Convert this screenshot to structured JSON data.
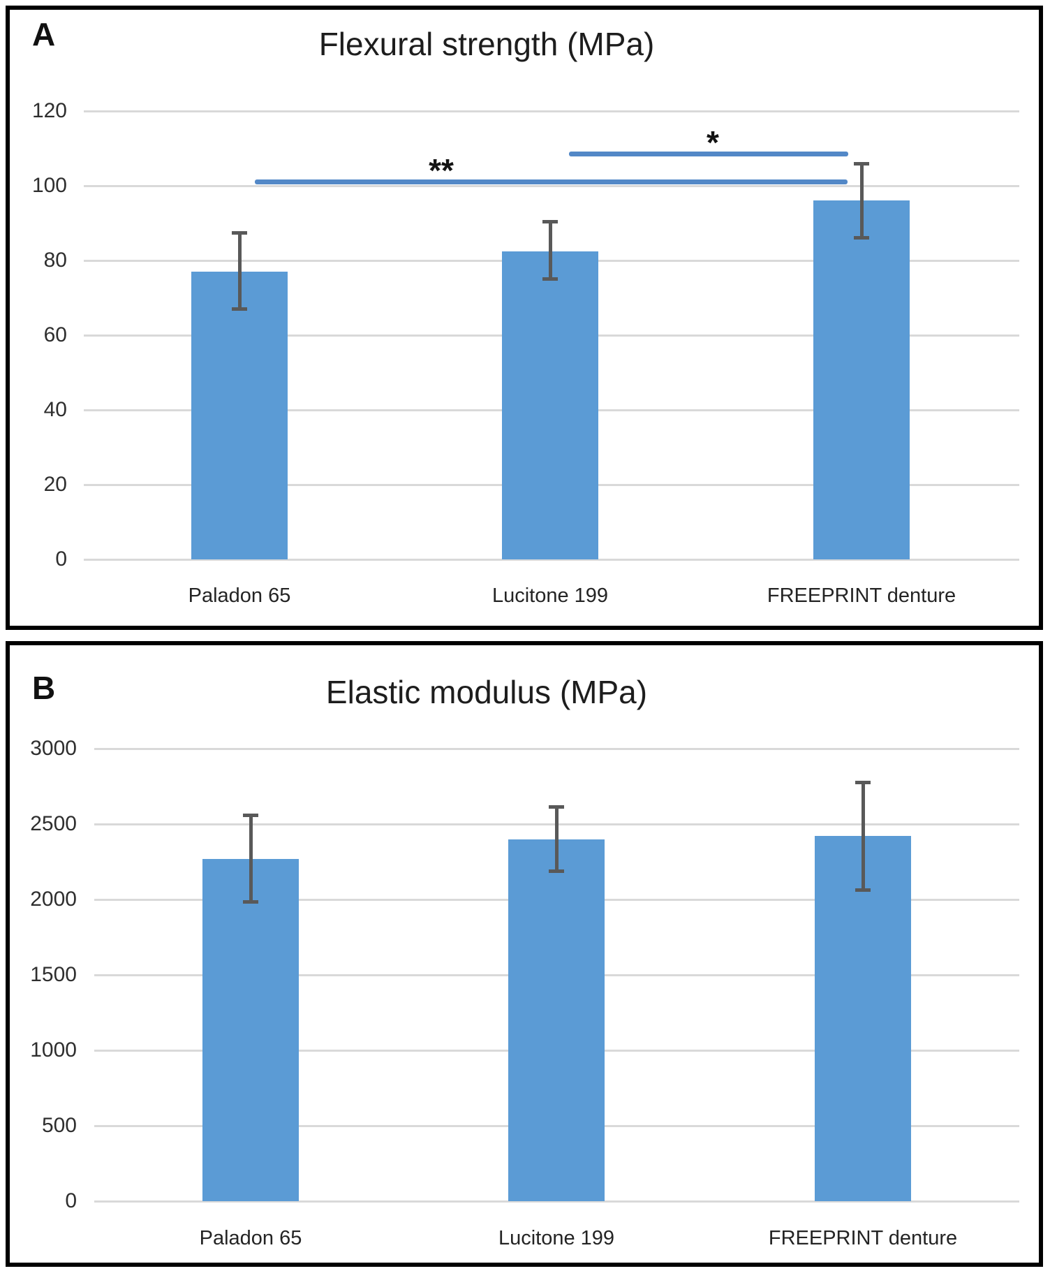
{
  "figure_caption_letters": [
    "A",
    "B"
  ],
  "colors": {
    "bar": "#5b9bd5",
    "significance_line": "#5388c7",
    "error_bar": "#595959",
    "gridline": "#d9d9d9",
    "panel_border": "#000000"
  },
  "chart_data": [
    {
      "panel_letter": "A",
      "type": "bar",
      "title": "Flexural strength (MPa)",
      "categories": [
        "Paladon 65",
        "Lucitone 199",
        "FREEPRINT denture"
      ],
      "values": [
        77,
        82.5,
        96
      ],
      "errors_up": [
        10.5,
        8,
        10
      ],
      "errors_down": [
        10,
        7.5,
        10
      ],
      "ylim": [
        0,
        120
      ],
      "yticks": [
        0,
        20,
        40,
        60,
        80,
        100,
        120
      ],
      "grid": true,
      "legend": "none",
      "bar_color": "#5b9bd5",
      "error_color": "#595959",
      "annotations": [
        {
          "label": "**",
          "from": "Paladon 65",
          "to": "FREEPRINT denture",
          "y_value": 101,
          "line_color": "#5388c7"
        },
        {
          "label": "*",
          "from": "Lucitone 199",
          "to": "FREEPRINT denture",
          "y_value": 108.5,
          "line_color": "#5388c7"
        }
      ]
    },
    {
      "panel_letter": "B",
      "type": "bar",
      "title": "Elastic modulus (MPa)",
      "categories": [
        "Paladon 65",
        "Lucitone 199",
        "FREEPRINT denture"
      ],
      "values": [
        2270,
        2400,
        2420
      ],
      "errors_up": [
        290,
        215,
        360
      ],
      "errors_down": [
        290,
        215,
        360
      ],
      "ylim": [
        0,
        3000
      ],
      "yticks": [
        0,
        500,
        1000,
        1500,
        2000,
        2500,
        3000
      ],
      "grid": true,
      "legend": "none",
      "bar_color": "#5b9bd5",
      "error_color": "#595959",
      "annotations": []
    }
  ]
}
